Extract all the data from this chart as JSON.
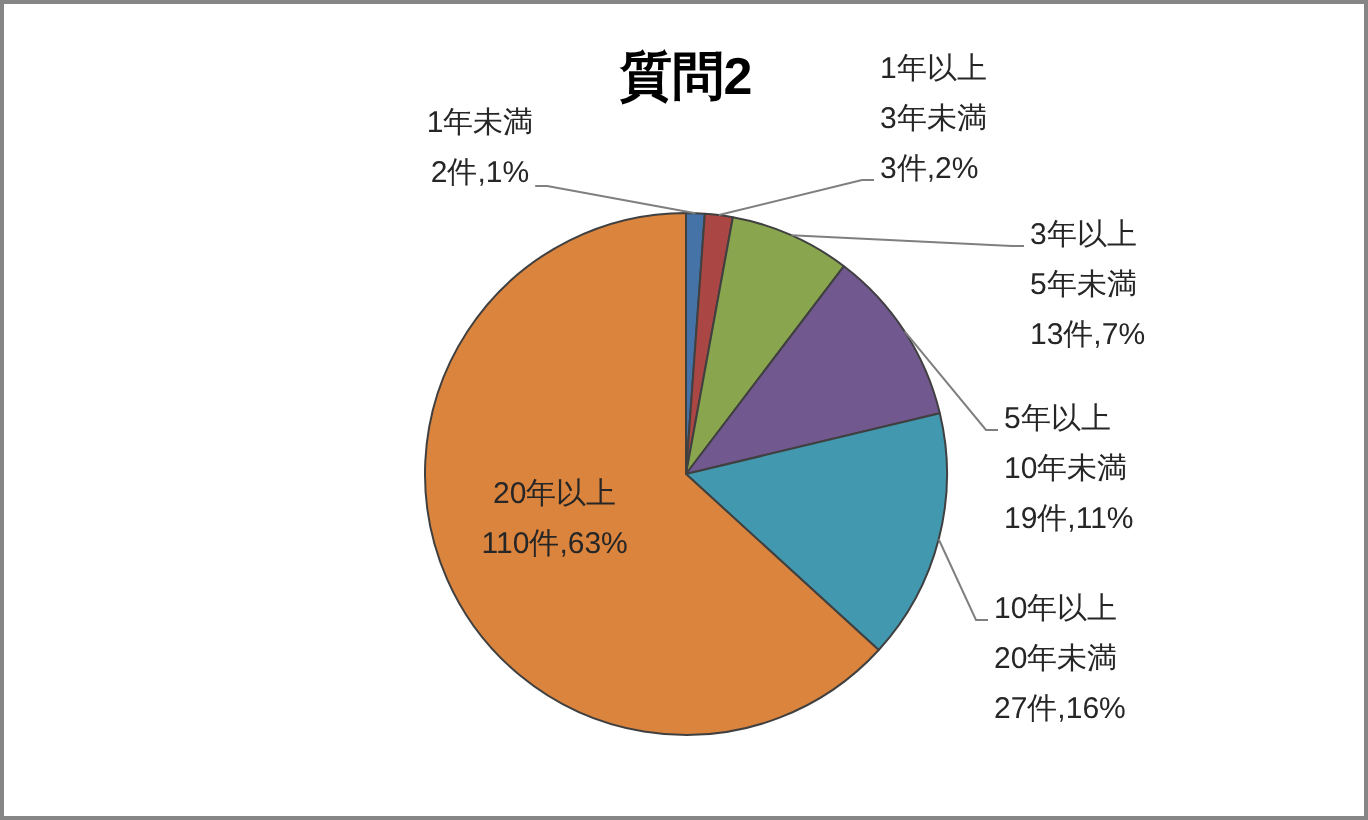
{
  "chart_data": {
    "type": "pie",
    "title": "質問2",
    "categories": [
      "1年未満",
      "1年以上\n3年未満",
      "3年以上\n5年未満",
      "5年以上\n10年未満",
      "10年以上\n20年未満",
      "20年以上"
    ],
    "values": [
      2,
      3,
      13,
      19,
      27,
      110
    ],
    "colors": [
      "#4572a7",
      "#aa4643",
      "#89a54e",
      "#71588f",
      "#4198af",
      "#db843d"
    ],
    "value_labels": [
      "2件,1%",
      "3件,2%",
      "13件,7%",
      "19件,11%",
      "27件,16%",
      "110件,63%"
    ]
  }
}
